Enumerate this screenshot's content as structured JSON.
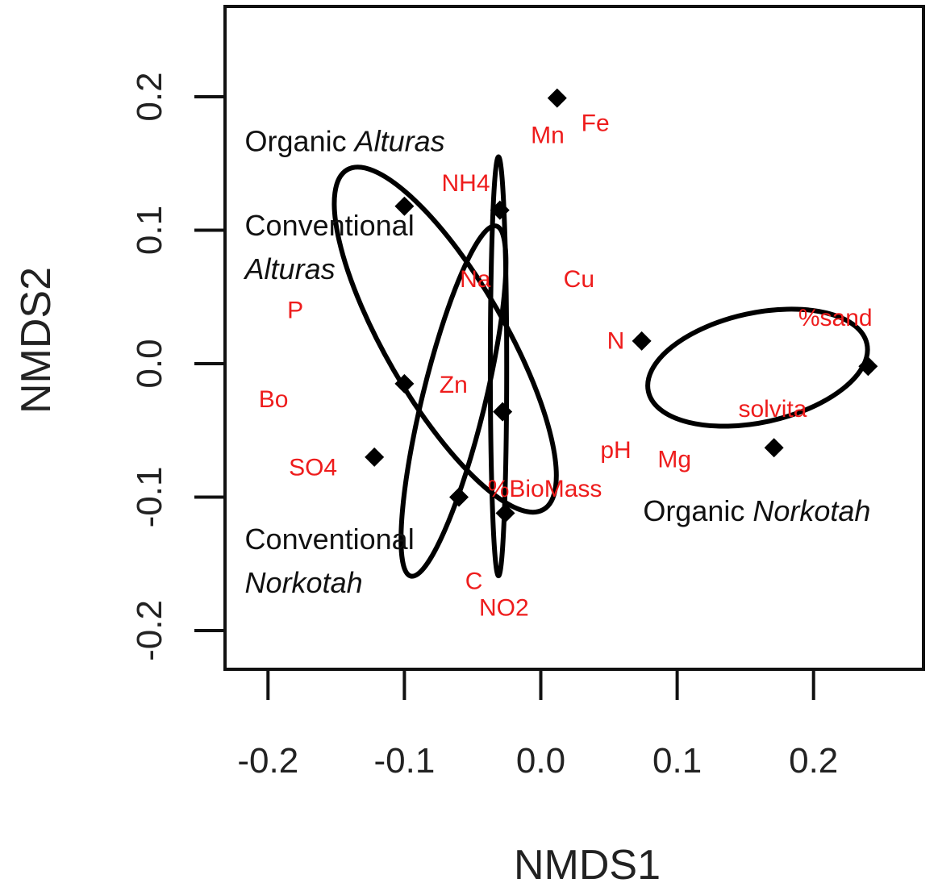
{
  "chart_data": {
    "type": "scatter",
    "xlabel": "NMDS1",
    "ylabel": "NMDS2",
    "xlim": [
      -0.235,
      0.29
    ],
    "ylim": [
      -0.23,
      0.27
    ],
    "x_ticks": [
      -0.2,
      -0.1,
      0.0,
      0.1,
      0.2
    ],
    "y_ticks": [
      -0.2,
      -0.1,
      0.0,
      0.1,
      0.2
    ],
    "x_tick_labels": [
      "-0.2",
      "-0.1",
      "0.0",
      "0.1",
      "0.2"
    ],
    "y_tick_labels": [
      "-0.2",
      "-0.1",
      "0.0",
      "0.1",
      "0.2"
    ],
    "grid": false,
    "label_color": "#ee1c1c",
    "point_color": "#000000",
    "ellipse_color": "#000000",
    "sites": [
      {
        "x": 0.012,
        "y": 0.199
      },
      {
        "x": -0.1,
        "y": 0.118
      },
      {
        "x": -0.03,
        "y": 0.115
      },
      {
        "x": -0.1,
        "y": -0.015
      },
      {
        "x": -0.028,
        "y": -0.036
      },
      {
        "x": -0.122,
        "y": -0.07
      },
      {
        "x": -0.06,
        "y": -0.1
      },
      {
        "x": -0.026,
        "y": -0.112
      },
      {
        "x": 0.074,
        "y": 0.017
      },
      {
        "x": 0.24,
        "y": -0.002
      },
      {
        "x": 0.171,
        "y": -0.063
      }
    ],
    "variables": [
      {
        "label": "Mn",
        "x": 0.005,
        "y": 0.171
      },
      {
        "label": "Fe",
        "x": 0.04,
        "y": 0.18
      },
      {
        "label": "NH4",
        "x": -0.055,
        "y": 0.135
      },
      {
        "label": "Na",
        "x": -0.048,
        "y": 0.063
      },
      {
        "label": "Cu",
        "x": 0.028,
        "y": 0.063
      },
      {
        "label": "P",
        "x": -0.18,
        "y": 0.04
      },
      {
        "label": "N",
        "x": 0.055,
        "y": 0.017
      },
      {
        "label": "%sand",
        "x": 0.216,
        "y": 0.034
      },
      {
        "label": "Zn",
        "x": -0.064,
        "y": -0.016
      },
      {
        "label": "Bo",
        "x": -0.196,
        "y": -0.027
      },
      {
        "label": "solvita",
        "x": 0.17,
        "y": -0.034
      },
      {
        "label": "pH",
        "x": 0.055,
        "y": -0.065
      },
      {
        "label": "Mg",
        "x": 0.098,
        "y": -0.072
      },
      {
        "label": "SO4",
        "x": -0.167,
        "y": -0.078
      },
      {
        "label": "%BioMass",
        "x": 0.003,
        "y": -0.094
      },
      {
        "label": "C",
        "x": -0.049,
        "y": -0.163
      },
      {
        "label": "NO2",
        "x": -0.027,
        "y": -0.183
      }
    ],
    "ellipses": [
      {
        "cx": -0.031,
        "cy": -0.002,
        "rx": 0.006,
        "ry": 0.157,
        "angle": 0
      },
      {
        "cx": -0.07,
        "cy": 0.018,
        "rx": 0.044,
        "ry": 0.147,
        "angle": -30
      },
      {
        "cx": -0.064,
        "cy": -0.028,
        "rx": 0.023,
        "ry": 0.135,
        "angle": 13.7
      },
      {
        "cx": 0.159,
        "cy": -0.003,
        "rx": 0.082,
        "ry": 0.041,
        "angle": -12.3
      }
    ],
    "group_labels": [
      {
        "lines": [
          [
            {
              "t": "Organic ",
              "i": false
            },
            {
              "t": "Alturas",
              "i": true
            }
          ]
        ],
        "x": -0.217,
        "y": 0.167
      },
      {
        "lines": [
          [
            {
              "t": "Conventional",
              "i": false
            }
          ],
          [
            {
              "t": "Alturas",
              "i": true
            }
          ]
        ],
        "x": -0.217,
        "y": 0.104
      },
      {
        "lines": [
          [
            {
              "t": "Conventional",
              "i": false
            }
          ],
          [
            {
              "t": "Norkotah",
              "i": true
            }
          ]
        ],
        "x": -0.217,
        "y": -0.131
      },
      {
        "lines": [
          [
            {
              "t": "Organic ",
              "i": false
            },
            {
              "t": "Norkotah",
              "i": true
            }
          ]
        ],
        "x": 0.075,
        "y": -0.11
      }
    ]
  }
}
